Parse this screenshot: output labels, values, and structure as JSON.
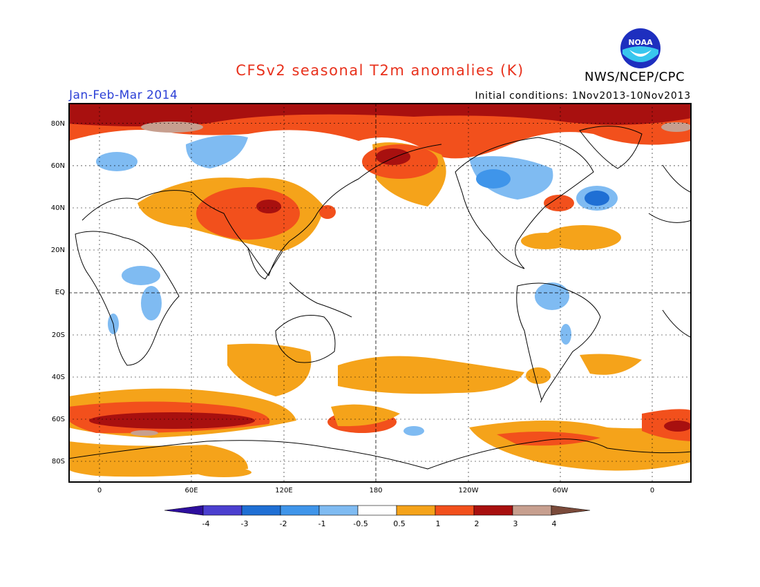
{
  "header": {
    "title": "CFSv2 seasonal T2m anomalies (K)",
    "agency": "NWS/NCEP/CPC",
    "period": "Jan-Feb-Mar 2014",
    "initial_conditions": "Initial conditions: 1Nov2013-10Nov2013",
    "logo_text": "NOAA"
  },
  "map": {
    "lat_labels": [
      "80N",
      "60N",
      "40N",
      "20N",
      "EQ",
      "20S",
      "40S",
      "60S",
      "80S"
    ],
    "lon_labels": [
      "0",
      "60E",
      "120E",
      "180",
      "120W",
      "60W",
      "0"
    ]
  },
  "colorbar": {
    "labels": [
      "-4",
      "-3",
      "-2",
      "-1",
      "-0.5",
      "0.5",
      "1",
      "2",
      "3",
      "4"
    ],
    "colors": [
      "#2e0f9e",
      "#4b3fcf",
      "#1f6fd4",
      "#3f95ea",
      "#7fbbf2",
      "#ffffff",
      "#f5a31a",
      "#f2501c",
      "#a8100f",
      "#c79f8f",
      "#7a4a3a"
    ]
  }
}
